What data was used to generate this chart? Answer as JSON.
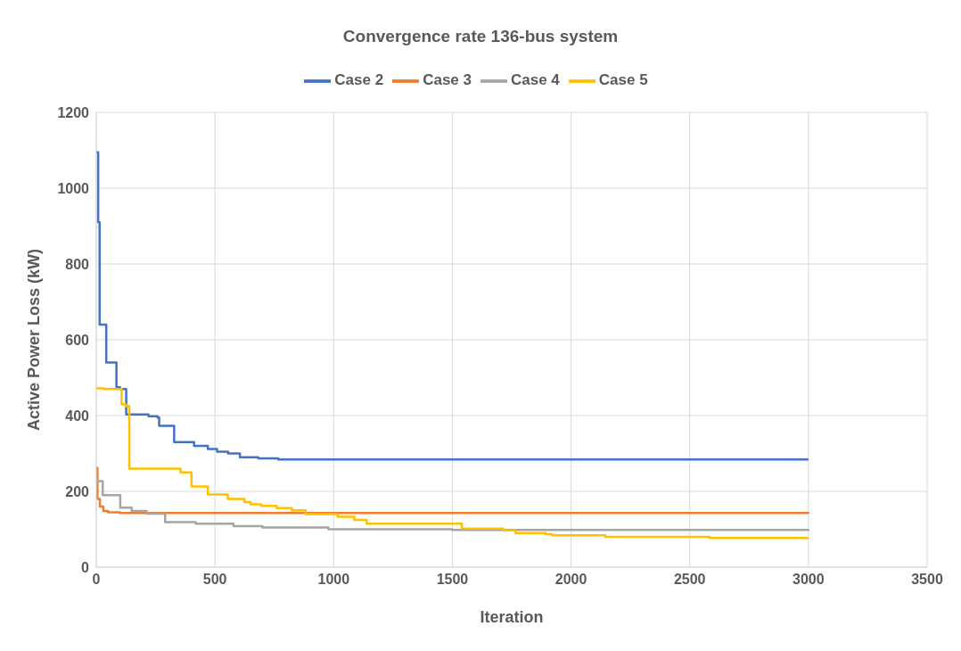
{
  "chart_data": {
    "type": "step",
    "title": "Convergence rate 136-bus system",
    "xlabel": "Iteration",
    "ylabel": "Active Power Loss (kW)",
    "xlim": [
      0,
      3500
    ],
    "xticks": [
      0,
      500,
      1000,
      1500,
      2000,
      2500,
      3000,
      3500
    ],
    "ylim": [
      0,
      1200
    ],
    "yticks": [
      0,
      200,
      400,
      600,
      800,
      1000,
      1200
    ],
    "grid": true,
    "legend": "top",
    "marker": "none",
    "line_style": "solid",
    "series": [
      {
        "name": "Case 2",
        "color": "#4472c4",
        "x": [
          0,
          8,
          14,
          42,
          85,
          100,
          126,
          220,
          258,
          265,
          328,
          412,
          470,
          509,
          555,
          605,
          682,
          767,
          3000
        ],
        "values": [
          1095,
          910,
          640,
          540,
          475,
          470,
          403,
          398,
          395,
          373,
          330,
          320,
          312,
          305,
          300,
          290,
          287,
          284,
          284
        ]
      },
      {
        "name": "Case 3",
        "color": "#ed7d31",
        "x": [
          0,
          5,
          15,
          30,
          50,
          100,
          3000
        ],
        "values": [
          262,
          180,
          160,
          148,
          145,
          143,
          142
        ]
      },
      {
        "name": "Case 4",
        "color": "#a5a5a5",
        "x": [
          0,
          27,
          101,
          149,
          212,
          290,
          419,
          578,
          700,
          978,
          1500,
          3000
        ],
        "values": [
          227,
          190,
          157,
          148,
          141,
          119,
          115,
          108,
          105,
          100,
          98,
          96
        ]
      },
      {
        "name": "Case 5",
        "color": "#ffc000",
        "x": [
          0,
          33,
          107,
          123,
          139,
          355,
          401,
          470,
          554,
          624,
          650,
          695,
          760,
          824,
          882,
          1017,
          1087,
          1139,
          1540,
          1714,
          1766,
          1893,
          1920,
          2144,
          2583,
          3000
        ],
        "values": [
          472,
          470,
          430,
          425,
          260,
          250,
          213,
          192,
          180,
          172,
          166,
          162,
          156,
          150,
          140,
          133,
          125,
          115,
          102,
          97,
          90,
          87,
          84,
          80,
          77,
          77
        ]
      }
    ]
  }
}
